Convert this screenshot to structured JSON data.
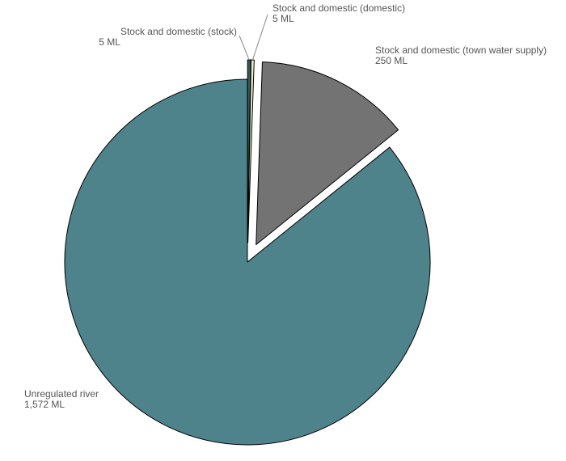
{
  "chart_data": {
    "type": "pie",
    "slices": [
      {
        "name": "Stock and domestic (stock)",
        "value": 5,
        "value_label": "5 ML",
        "color": "#355e5e",
        "exploded": true,
        "label_align": "right"
      },
      {
        "name": "Stock and domestic (domestic)",
        "value": 5,
        "value_label": "5 ML",
        "color": "#e8ebc4",
        "exploded": true,
        "label_align": "left"
      },
      {
        "name": "Stock and domestic (town water supply)",
        "value": 250,
        "value_label": "250 ML",
        "color": "#737373",
        "exploded": true,
        "label_align": "left"
      },
      {
        "name": "Unregulated river",
        "value": 1572,
        "value_label": "1,572 ML",
        "color": "#4e838b",
        "exploded": false,
        "label_align": "left"
      }
    ],
    "legend": "none",
    "start_angle": "12 o'clock",
    "direction": "clockwise"
  }
}
